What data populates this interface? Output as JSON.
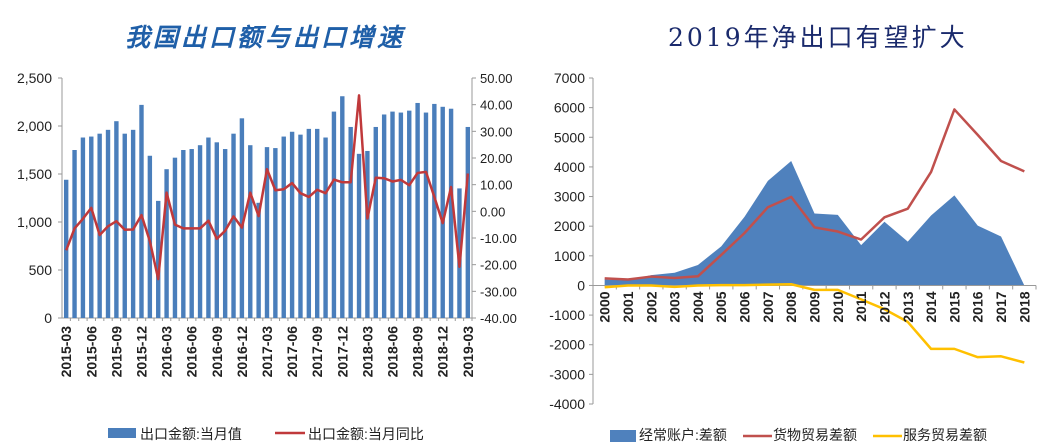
{
  "chart_data": [
    {
      "type": "bar+line",
      "title": "我国出口额与出口增速",
      "x": [
        "2015-03",
        "2015-04",
        "2015-05",
        "2015-06",
        "2015-07",
        "2015-08",
        "2015-09",
        "2015-10",
        "2015-11",
        "2015-12",
        "2016-01",
        "2016-02",
        "2016-03",
        "2016-04",
        "2016-05",
        "2016-06",
        "2016-07",
        "2016-08",
        "2016-09",
        "2016-10",
        "2016-11",
        "2016-12",
        "2017-01",
        "2017-02",
        "2017-03",
        "2017-04",
        "2017-05",
        "2017-06",
        "2017-07",
        "2017-08",
        "2017-09",
        "2017-10",
        "2017-11",
        "2017-12",
        "2018-01",
        "2018-02",
        "2018-03",
        "2018-04",
        "2018-05",
        "2018-06",
        "2018-07",
        "2018-08",
        "2018-09",
        "2018-10",
        "2018-11",
        "2018-12",
        "2019-01",
        "2019-02",
        "2019-03"
      ],
      "x_tick_labels": [
        "2015-03",
        "2015-06",
        "2015-09",
        "2015-12",
        "2016-03",
        "2016-06",
        "2016-09",
        "2016-12",
        "2017-03",
        "2017-06",
        "2017-09",
        "2017-12",
        "2018-03",
        "2018-06",
        "2018-09",
        "2018-12",
        "2019-03"
      ],
      "series": [
        {
          "name": "出口金额:当月值",
          "type": "bar",
          "axis": "left",
          "color": "#4a7ebb",
          "values": [
            1440,
            1750,
            1880,
            1890,
            1920,
            1960,
            2050,
            1920,
            1960,
            2220,
            1690,
            1220,
            1550,
            1670,
            1750,
            1760,
            1800,
            1880,
            1830,
            1760,
            1920,
            2080,
            1800,
            1200,
            1780,
            1770,
            1890,
            1940,
            1910,
            1970,
            1970,
            1880,
            2150,
            2310,
            1990,
            1710,
            1740,
            1990,
            2120,
            2150,
            2140,
            2160,
            2240,
            2140,
            2230,
            2200,
            2180,
            1350,
            1990
          ]
        },
        {
          "name": "出口金额:当月同比",
          "type": "line",
          "axis": "right",
          "color": "#c0393b",
          "values": [
            -14.6,
            -6.4,
            -2.8,
            1.3,
            -8.9,
            -5.6,
            -3.7,
            -6.9,
            -6.8,
            -1.4,
            -11.2,
            -25.4,
            7.0,
            -5.0,
            -6.4,
            -6.4,
            -6.4,
            -3.5,
            -10.3,
            -7.3,
            -1.9,
            -6.1,
            7.0,
            -1.8,
            15.8,
            7.9,
            8.3,
            10.6,
            6.8,
            5.4,
            8.1,
            6.8,
            11.9,
            10.9,
            10.9,
            43.5,
            -2.7,
            12.6,
            12.4,
            11.2,
            11.8,
            9.8,
            14.4,
            14.8,
            5.4,
            -4.4,
            9.1,
            -20.8,
            14.2
          ]
        }
      ],
      "y_left": {
        "ylim": [
          0,
          2500
        ],
        "ticks": [
          "0",
          "500",
          "1,000",
          "1,500",
          "2,000",
          "2,500"
        ]
      },
      "y_right": {
        "ylim": [
          -40,
          50
        ],
        "ticks": [
          "-40.00",
          "-30.00",
          "-20.00",
          "-10.00",
          "0.00",
          "10.00",
          "20.00",
          "30.00",
          "40.00",
          "50.00"
        ]
      },
      "legend": "bottom",
      "grid": false
    },
    {
      "type": "area+line",
      "title": "2019年净出口有望扩大",
      "x": [
        "2000",
        "2001",
        "2002",
        "2003",
        "2004",
        "2005",
        "2006",
        "2007",
        "2008",
        "2009",
        "2010",
        "2011",
        "2012",
        "2013",
        "2014",
        "2015",
        "2016",
        "2017",
        "2018"
      ],
      "series": [
        {
          "name": "经常账户:差额",
          "type": "area",
          "color": "#4f81bd",
          "values": [
            200,
            170,
            350,
            430,
            690,
            1320,
            2320,
            3530,
            4200,
            2430,
            2380,
            1360,
            2150,
            1480,
            2360,
            3040,
            2020,
            1650,
            0
          ]
        },
        {
          "name": "货物贸易差额",
          "type": "line",
          "color": "#c0504d",
          "values": [
            240,
            200,
            300,
            250,
            310,
            1030,
            1770,
            2640,
            2990,
            1960,
            1820,
            1550,
            2300,
            2590,
            3830,
            5940,
            5080,
            4200,
            3850
          ]
        },
        {
          "name": "服务贸易差额",
          "type": "line",
          "color": "#ffc000",
          "values": [
            -60,
            0,
            0,
            -50,
            0,
            10,
            10,
            30,
            40,
            -150,
            -150,
            -470,
            -800,
            -1230,
            -2140,
            -2140,
            -2420,
            -2390,
            -2600
          ]
        }
      ],
      "ylim": [
        -4000,
        7000
      ],
      "y_ticks": [
        "-4000",
        "-3000",
        "-2000",
        "-1000",
        "0",
        "1000",
        "2000",
        "3000",
        "4000",
        "5000",
        "6000",
        "7000"
      ],
      "legend": "bottom",
      "grid": false
    }
  ]
}
